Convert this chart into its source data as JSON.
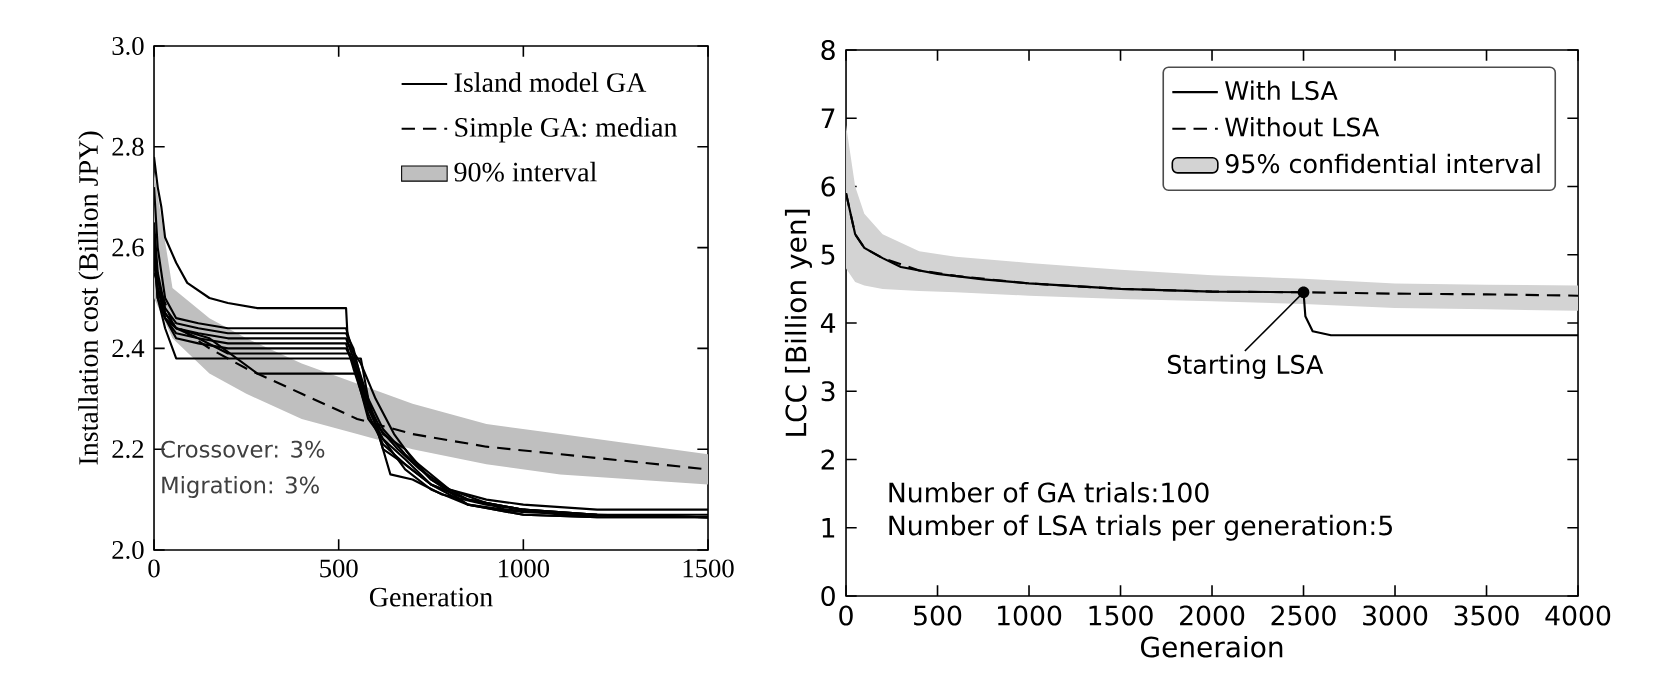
{
  "chart_data": [
    {
      "type": "line",
      "xlabel": "Generation",
      "ylabel": "Installation cost (Billion JPY)",
      "xlim": [
        0,
        1500
      ],
      "ylim": [
        2.0,
        3.0
      ],
      "xticks": [
        0,
        500,
        1000,
        1500
      ],
      "yticks": [
        {
          "value": 2,
          "label": "2.0"
        },
        2.2,
        2.4,
        2.6,
        2.8,
        {
          "value": 3,
          "label": "3.0"
        }
      ],
      "legend": "top right",
      "annotations": [
        "Crossover: 3%",
        "Migration: 3%"
      ],
      "series": [
        {
          "name": "Island model GA",
          "color": "#000000",
          "x": [
            0,
            10,
            20,
            30,
            60,
            90,
            150,
            200,
            280,
            520,
            525,
            560,
            600,
            650,
            700,
            800,
            900,
            1000,
            1200,
            1500
          ],
          "values": [
            2.78,
            2.72,
            2.68,
            2.62,
            2.57,
            2.53,
            2.5,
            2.49,
            2.48,
            2.48,
            2.41,
            2.37,
            2.3,
            2.23,
            2.18,
            2.12,
            2.1,
            2.09,
            2.08,
            2.08
          ]
        },
        {
          "color": "#000000",
          "x": [
            0,
            10,
            30,
            60,
            120,
            200,
            520,
            540,
            580,
            620,
            680,
            750,
            850,
            1000,
            1200,
            1500
          ],
          "values": [
            2.72,
            2.6,
            2.5,
            2.46,
            2.45,
            2.44,
            2.44,
            2.39,
            2.3,
            2.24,
            2.19,
            2.14,
            2.1,
            2.08,
            2.07,
            2.07
          ]
        },
        {
          "color": "#000000",
          "x": [
            0,
            10,
            30,
            60,
            120,
            200,
            520,
            540,
            580,
            620,
            680,
            750,
            850,
            1000,
            1200,
            1500
          ],
          "values": [
            2.65,
            2.55,
            2.48,
            2.45,
            2.44,
            2.43,
            2.43,
            2.4,
            2.28,
            2.22,
            2.18,
            2.13,
            2.1,
            2.08,
            2.07,
            2.065
          ]
        },
        {
          "color": "#000000",
          "x": [
            0,
            10,
            30,
            60,
            120,
            200,
            520,
            540,
            580,
            620,
            680,
            750,
            850,
            1000,
            1200,
            1500
          ],
          "values": [
            2.6,
            2.52,
            2.47,
            2.44,
            2.43,
            2.42,
            2.42,
            2.38,
            2.29,
            2.23,
            2.2,
            2.14,
            2.09,
            2.075,
            2.07,
            2.065
          ]
        },
        {
          "color": "#000000",
          "x": [
            0,
            10,
            30,
            60,
            120,
            200,
            520,
            540,
            580,
            620,
            680,
            750,
            850,
            1000,
            1200,
            1500
          ],
          "values": [
            2.62,
            2.5,
            2.46,
            2.43,
            2.42,
            2.41,
            2.41,
            2.36,
            2.27,
            2.21,
            2.17,
            2.13,
            2.09,
            2.07,
            2.065,
            2.065
          ]
        },
        {
          "color": "#000000",
          "x": [
            0,
            10,
            30,
            60,
            120,
            200,
            520,
            540,
            580,
            620,
            680,
            750,
            850,
            1000,
            1200,
            1500
          ],
          "values": [
            2.58,
            2.52,
            2.46,
            2.42,
            2.41,
            2.4,
            2.4,
            2.37,
            2.26,
            2.22,
            2.16,
            2.12,
            2.09,
            2.07,
            2.065,
            2.065
          ]
        },
        {
          "color": "#000000",
          "x": [
            0,
            10,
            30,
            60,
            120,
            200,
            560,
            580,
            620,
            680,
            750,
            850,
            1000,
            1200,
            1500
          ],
          "values": [
            2.6,
            2.5,
            2.44,
            2.38,
            2.38,
            2.38,
            2.38,
            2.3,
            2.2,
            2.17,
            2.13,
            2.1,
            2.08,
            2.07,
            2.065
          ]
        },
        {
          "color": "#000000",
          "x": [
            0,
            10,
            30,
            60,
            150,
            280,
            550,
            570,
            600,
            640,
            700,
            780,
            900,
            1100,
            1500
          ],
          "values": [
            2.58,
            2.5,
            2.46,
            2.44,
            2.42,
            2.35,
            2.35,
            2.3,
            2.25,
            2.15,
            2.14,
            2.11,
            2.09,
            2.07,
            2.065
          ]
        },
        {
          "color": "#000000",
          "x": [
            0,
            10,
            30,
            60,
            120,
            200,
            530,
            560,
            600,
            660,
            720,
            800,
            950,
            1150,
            1500
          ],
          "values": [
            2.62,
            2.54,
            2.47,
            2.44,
            2.42,
            2.39,
            2.39,
            2.33,
            2.25,
            2.2,
            2.16,
            2.12,
            2.08,
            2.07,
            2.065
          ]
        },
        {
          "name": "Simple GA: median",
          "color": "#000000",
          "line_style": "dashed",
          "x": [
            0,
            50,
            150,
            250,
            400,
            550,
            700,
            900,
            1100,
            1300,
            1500
          ],
          "values": [
            2.55,
            2.45,
            2.4,
            2.36,
            2.31,
            2.26,
            2.23,
            2.205,
            2.19,
            2.175,
            2.16
          ],
          "lower": [
            2.5,
            2.42,
            2.35,
            2.31,
            2.26,
            2.23,
            2.2,
            2.17,
            2.15,
            2.14,
            2.13
          ],
          "upper": [
            2.75,
            2.52,
            2.46,
            2.42,
            2.37,
            2.33,
            2.29,
            2.25,
            2.23,
            2.21,
            2.19
          ]
        },
        {
          "name": "90% interval",
          "type": "area",
          "color": "#bfbfbf"
        }
      ]
    },
    {
      "type": "line",
      "xlabel": "Generaion",
      "ylabel": "LCC [Billion yen]",
      "xlim": [
        0,
        4000
      ],
      "ylim": [
        0,
        8
      ],
      "xticks": [
        0,
        500,
        1000,
        1500,
        2000,
        2500,
        3000,
        3500,
        4000
      ],
      "yticks": [
        0,
        1,
        2,
        3,
        4,
        5,
        6,
        7,
        8
      ],
      "legend": "top right",
      "annotations": [
        {
          "text": "Starting LSA",
          "x": 2500,
          "y": 4.45
        },
        "Number of GA trials:100",
        "Number of LSA trials per generation:5"
      ],
      "series": [
        {
          "name": "With LSA",
          "color": "#000000",
          "x": [
            0,
            50,
            100,
            200,
            300,
            500,
            750,
            1000,
            1500,
            2000,
            2500,
            2510,
            2550,
            2650,
            4000
          ],
          "values": [
            5.9,
            5.3,
            5.1,
            4.95,
            4.82,
            4.72,
            4.64,
            4.58,
            4.5,
            4.46,
            4.45,
            4.1,
            3.88,
            3.82,
            3.82
          ]
        },
        {
          "name": "Without LSA",
          "color": "#000000",
          "line_style": "dashed",
          "x": [
            0,
            50,
            100,
            200,
            400,
            600,
            1000,
            1500,
            2000,
            2500,
            3000,
            3500,
            4000
          ],
          "values": [
            5.9,
            5.3,
            5.1,
            4.95,
            4.77,
            4.69,
            4.58,
            4.5,
            4.46,
            4.45,
            4.43,
            4.42,
            4.4
          ],
          "lower": [
            4.8,
            4.6,
            4.55,
            4.5,
            4.47,
            4.45,
            4.4,
            4.35,
            4.32,
            4.28,
            4.22,
            4.2,
            4.18
          ],
          "upper": [
            6.9,
            6.0,
            5.6,
            5.3,
            5.05,
            4.97,
            4.88,
            4.78,
            4.7,
            4.65,
            4.58,
            4.56,
            4.55
          ]
        },
        {
          "name": "95% confidential interval",
          "type": "area",
          "color": "#d3d3d3"
        }
      ]
    }
  ]
}
